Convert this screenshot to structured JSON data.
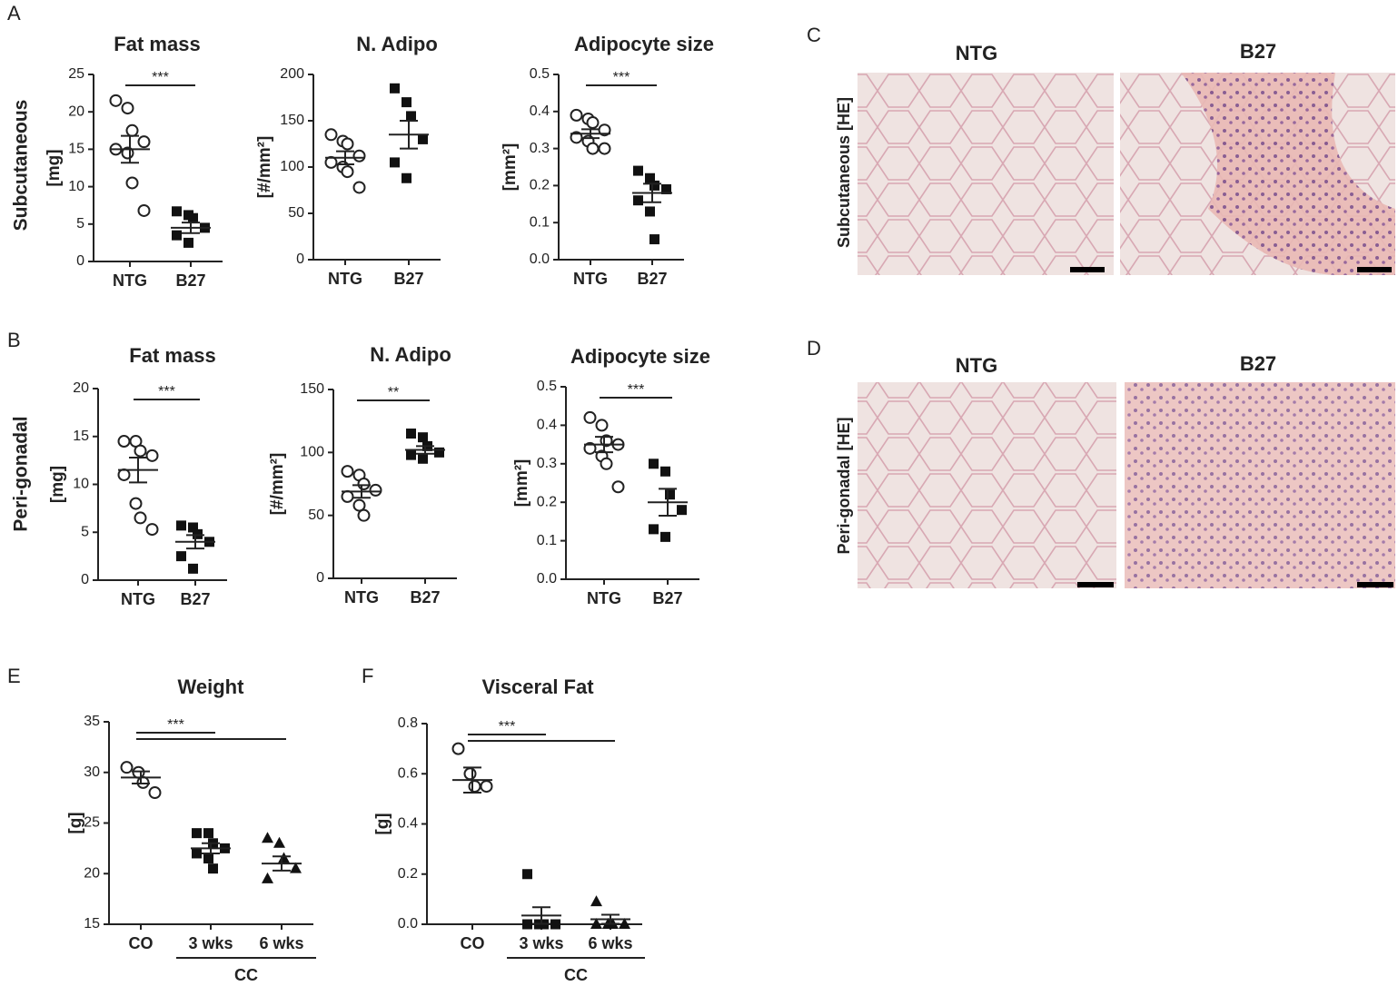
{
  "panel_letters": [
    "A",
    "B",
    "C",
    "D",
    "E",
    "F"
  ],
  "row_labels": [
    "Subcutaneous",
    "Peri-gonadal"
  ],
  "histology": [
    {
      "label": "Subcutaneous [HE]",
      "titles": [
        "NTG",
        "B27"
      ]
    },
    {
      "label": "Peri-gonadal [HE]",
      "titles": [
        "NTG",
        "B27"
      ]
    }
  ],
  "chart_data": [
    {
      "type": "dot",
      "title": "Fat mass",
      "ylabel": "[mg]",
      "categories": [
        "NTG",
        "B27"
      ],
      "markers": [
        "open-circle",
        "square"
      ],
      "values": [
        [
          21.5,
          20.5,
          17.5,
          16,
          15,
          14.5,
          10.5,
          6.8
        ],
        [
          6.7,
          6.2,
          5.8,
          4.5,
          3.5,
          2.5
        ]
      ],
      "means": [
        15,
        4.5
      ],
      "sems": [
        1.8,
        0.7
      ],
      "ylim": [
        0,
        25
      ],
      "yticks": [
        0,
        5,
        10,
        15,
        20,
        25
      ],
      "annotations": [
        {
          "text": "***",
          "from": 0,
          "to": 1
        }
      ]
    },
    {
      "type": "dot",
      "title": "N. Adipo",
      "ylabel": "[#/mm²]",
      "categories": [
        "NTG",
        "B27"
      ],
      "markers": [
        "open-circle",
        "square"
      ],
      "values": [
        [
          135,
          128,
          125,
          112,
          105,
          100,
          95,
          78
        ],
        [
          185,
          170,
          155,
          130,
          105,
          88
        ]
      ],
      "means": [
        110,
        135
      ],
      "sems": [
        7,
        15
      ],
      "ylim": [
        0,
        200
      ],
      "yticks": [
        0,
        50,
        100,
        150,
        200
      ],
      "annotations": []
    },
    {
      "type": "dot",
      "title": "Adipocyte size",
      "ylabel": "[mm²]",
      "categories": [
        "NTG",
        "B27"
      ],
      "markers": [
        "open-circle",
        "square"
      ],
      "values": [
        [
          0.39,
          0.38,
          0.37,
          0.35,
          0.33,
          0.32,
          0.3,
          0.3
        ],
        [
          0.24,
          0.22,
          0.2,
          0.19,
          0.16,
          0.13,
          0.055
        ]
      ],
      "means": [
        0.34,
        0.18
      ],
      "sems": [
        0.012,
        0.025
      ],
      "ylim": [
        0,
        0.5
      ],
      "yticks": [
        {
          "value": 0,
          "label": "0.0"
        },
        0.1,
        0.2,
        0.3,
        0.4,
        0.5
      ],
      "annotations": [
        {
          "text": "***",
          "from": 0,
          "to": 1
        }
      ]
    },
    {
      "type": "dot",
      "title": "Fat mass",
      "ylabel": "[mg]",
      "categories": [
        "NTG",
        "B27"
      ],
      "markers": [
        "open-circle",
        "square"
      ],
      "values": [
        [
          14.5,
          14.5,
          13.5,
          13,
          11,
          8,
          6.5,
          5.3
        ],
        [
          5.7,
          5.5,
          4.8,
          4,
          2.5,
          1.2
        ]
      ],
      "means": [
        11.5,
        4
      ],
      "sems": [
        1.3,
        0.7
      ],
      "ylim": [
        0,
        20
      ],
      "yticks": [
        0,
        5,
        10,
        15,
        20
      ],
      "annotations": [
        {
          "text": "***",
          "from": 0,
          "to": 1
        }
      ]
    },
    {
      "type": "dot",
      "title": "N. Adipo",
      "ylabel": "[#/mm²]",
      "categories": [
        "NTG",
        "B27"
      ],
      "markers": [
        "open-circle",
        "square"
      ],
      "values": [
        [
          85,
          82,
          75,
          70,
          65,
          58,
          50
        ],
        [
          115,
          112,
          105,
          100,
          98,
          95
        ]
      ],
      "means": [
        69,
        102
      ],
      "sems": [
        5,
        3
      ],
      "ylim": [
        0,
        150
      ],
      "yticks": [
        0,
        50,
        100,
        150
      ],
      "annotations": [
        {
          "text": "**",
          "from": 0,
          "to": 1
        }
      ]
    },
    {
      "type": "dot",
      "title": "Adipocyte size",
      "ylabel": "[mm²]",
      "categories": [
        "NTG",
        "B27"
      ],
      "markers": [
        "open-circle",
        "square"
      ],
      "values": [
        [
          0.42,
          0.4,
          0.36,
          0.35,
          0.34,
          0.32,
          0.3,
          0.24
        ],
        [
          0.3,
          0.28,
          0.22,
          0.18,
          0.13,
          0.11
        ]
      ],
      "means": [
        0.35,
        0.2
      ],
      "sems": [
        0.02,
        0.035
      ],
      "ylim": [
        0,
        0.5
      ],
      "yticks": [
        {
          "value": 0,
          "label": "0.0"
        },
        0.1,
        0.2,
        0.3,
        0.4,
        0.5
      ],
      "annotations": [
        {
          "text": "***",
          "from": 0,
          "to": 1
        }
      ]
    },
    {
      "type": "dot",
      "title": "Weight",
      "ylabel": "[g]",
      "categories": [
        "CO",
        "3 wks",
        "6 wks"
      ],
      "markers": [
        "open-circle",
        "square",
        "triangle"
      ],
      "values": [
        [
          30.5,
          30,
          29,
          28
        ],
        [
          24,
          24,
          23,
          22.5,
          22,
          21.5,
          20.5
        ],
        [
          23.5,
          23,
          21.5,
          20.5,
          19.5
        ]
      ],
      "means": [
        29.5,
        22.5,
        21
      ],
      "sems": [
        0.6,
        0.5,
        0.7
      ],
      "ylim": [
        15,
        35
      ],
      "yticks": [
        15,
        20,
        25,
        30,
        35
      ],
      "annotations": [
        {
          "text": "***",
          "from": 0,
          "to": 1
        },
        {
          "from": 0,
          "to": 2
        }
      ],
      "category_groups": [
        {
          "label": "CC",
          "from": 1,
          "to": 2
        }
      ]
    },
    {
      "type": "dot",
      "title": "Visceral Fat",
      "ylabel": "[g]",
      "categories": [
        "CO",
        "3 wks",
        "6 wks"
      ],
      "markers": [
        "open-circle",
        "square",
        "triangle"
      ],
      "values": [
        [
          0.7,
          0.6,
          0.55,
          0.55
        ],
        [
          0.2,
          0,
          0,
          0,
          0,
          0
        ],
        [
          0.09,
          0,
          0,
          0,
          0,
          0
        ]
      ],
      "means": [
        0.575,
        0.035,
        0.02
      ],
      "sems": [
        0.05,
        0.033,
        0.018
      ],
      "ylim": [
        0,
        0.8
      ],
      "yticks": [
        {
          "value": 0,
          "label": "0.0"
        },
        0.2,
        0.4,
        0.6,
        0.8
      ],
      "annotations": [
        {
          "text": "***",
          "from": 0,
          "to": 1
        },
        {
          "from": 0,
          "to": 2
        }
      ],
      "category_groups": [
        {
          "label": "CC",
          "from": 1,
          "to": 2
        }
      ]
    }
  ]
}
